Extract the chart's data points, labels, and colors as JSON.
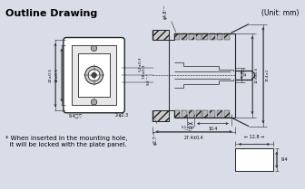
{
  "title": "Outline Drawing",
  "unit_label": "(Unit: mm)",
  "bg_color": "#d8dde8",
  "line_color": "#222222",
  "footnote_line1": "* When inserted in the mounting hole,",
  "footnote_line2": "  it will be locked with the plate panel."
}
